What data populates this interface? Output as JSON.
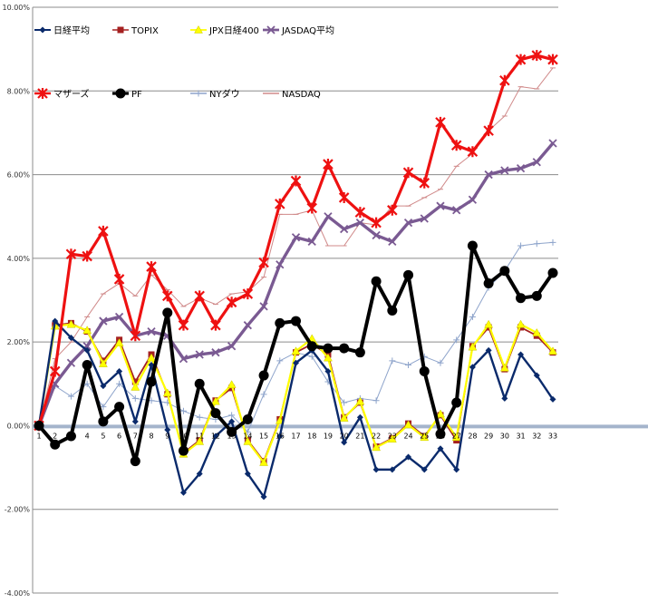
{
  "chart_data": {
    "type": "line",
    "title": "",
    "xlabel": "",
    "ylabel": "",
    "ylim": [
      -0.04,
      0.1
    ],
    "grid": true,
    "legend_placement": "top-left",
    "y_ticks": [
      "10.00%",
      "8.00%",
      "6.00%",
      "4.00%",
      "2.00%",
      "0.00%",
      "-2.00%",
      "-4.00%"
    ],
    "y_tick_values": [
      0.1,
      0.08,
      0.06,
      0.04,
      0.02,
      0.0,
      -0.02,
      -0.04
    ],
    "x": [
      "1",
      "2",
      "3",
      "4",
      "5",
      "6",
      "7",
      "8",
      "9",
      "10",
      "11",
      "12",
      "13",
      "14",
      "15",
      "16",
      "17",
      "18",
      "19",
      "20",
      "21",
      "22",
      "23",
      "24",
      "25",
      "26",
      "27",
      "28",
      "29",
      "30",
      "31",
      "32",
      "33"
    ],
    "series": [
      {
        "name": "日経平均",
        "color": "#0a2a6b",
        "marker": "diamond",
        "width": 2.4,
        "values": [
          0,
          0.025,
          0.021,
          0.018,
          0.0095,
          0.013,
          0.001,
          0.0145,
          -0.001,
          -0.016,
          -0.0115,
          -0.0025,
          0.001,
          -0.0115,
          -0.017,
          -0.0025,
          0.015,
          0.018,
          0.013,
          -0.004,
          0.002,
          -0.0105,
          -0.0105,
          -0.0075,
          -0.0105,
          -0.0055,
          -0.0105,
          0.014,
          0.018,
          0.0065,
          0.017,
          0.012,
          0.0063
        ]
      },
      {
        "name": "TOPIX",
        "color": "#a52020",
        "marker": "square",
        "width": 1.8,
        "values": [
          0,
          0.024,
          0.0245,
          0.0225,
          0.0155,
          0.0205,
          0.0105,
          0.017,
          0.0075,
          -0.0065,
          -0.0035,
          0.006,
          0.009,
          -0.0035,
          -0.0085,
          0.0015,
          0.0175,
          0.0195,
          0.017,
          0.002,
          0.0055,
          -0.005,
          -0.003,
          0.0005,
          -0.0025,
          0.0025,
          -0.0035,
          0.019,
          0.0235,
          0.0135,
          0.0235,
          0.0215,
          0.0175
        ]
      },
      {
        "name": "JPX日経400",
        "color": "#ffff00",
        "marker": "triangle",
        "width": 2.2,
        "values": [
          0,
          0.0238,
          0.0242,
          0.0228,
          0.0148,
          0.0198,
          0.0092,
          0.0162,
          0.0078,
          -0.0068,
          -0.0038,
          0.0058,
          0.0098,
          -0.0038,
          -0.0088,
          0.0012,
          0.0178,
          0.0208,
          0.0162,
          0.0018,
          0.0058,
          -0.0052,
          -0.0032,
          0.0002,
          -0.0028,
          0.0028,
          -0.0028,
          0.0188,
          0.0242,
          0.0138,
          0.0242,
          0.0222,
          0.0178
        ]
      },
      {
        "name": "JASDAQ平均",
        "color": "#7a5a92",
        "marker": "x",
        "width": 3.4,
        "values": [
          0,
          0.01,
          0.015,
          0.019,
          0.025,
          0.026,
          0.0215,
          0.0225,
          0.0215,
          0.016,
          0.017,
          0.0175,
          0.019,
          0.024,
          0.0285,
          0.0385,
          0.045,
          0.044,
          0.05,
          0.047,
          0.0485,
          0.0455,
          0.044,
          0.0485,
          0.0495,
          0.0525,
          0.0515,
          0.054,
          0.06,
          0.061,
          0.0615,
          0.063,
          0.0675
        ]
      },
      {
        "name": "マザーズ",
        "color": "#ee1111",
        "marker": "star",
        "width": 3.2,
        "values": [
          0,
          0.013,
          0.041,
          0.0405,
          0.0465,
          0.035,
          0.0215,
          0.038,
          0.031,
          0.024,
          0.031,
          0.024,
          0.0295,
          0.0315,
          0.039,
          0.053,
          0.0585,
          0.052,
          0.0625,
          0.0545,
          0.051,
          0.0485,
          0.0515,
          0.0605,
          0.058,
          0.0725,
          0.067,
          0.0655,
          0.0705,
          0.0825,
          0.0875,
          0.0885,
          0.0875
        ]
      },
      {
        "name": "PF",
        "color": "#000000",
        "marker": "circle",
        "width": 4,
        "values": [
          0,
          -0.0045,
          -0.0025,
          0.0145,
          0.001,
          0.0045,
          -0.0085,
          0.0105,
          0.027,
          -0.006,
          0.01,
          0.003,
          -0.0015,
          0.0015,
          0.012,
          0.0245,
          0.025,
          0.019,
          0.0185,
          0.0185,
          0.0175,
          0.0345,
          0.0275,
          0.036,
          0.013,
          -0.002,
          0.0055,
          0.043,
          0.034,
          0.037,
          0.0305,
          0.031,
          0.0365
        ]
      },
      {
        "name": "NYダウ",
        "color": "#8ea4cb",
        "marker": "plus",
        "width": 1,
        "values": [
          0,
          0.0095,
          0.007,
          0.01,
          0.0045,
          0.01,
          0.0065,
          0.006,
          0.0055,
          0.0035,
          0.002,
          0.0015,
          0.0025,
          -0.0015,
          0.0075,
          0.0155,
          0.0175,
          0.0165,
          0.0105,
          0.0055,
          0.0065,
          0.006,
          0.0155,
          0.0145,
          0.0165,
          0.015,
          0.0205,
          0.026,
          0.033,
          0.037,
          0.043,
          0.0435,
          0.0438
        ]
      },
      {
        "name": "NASDAQ",
        "color": "#d08a8a",
        "marker": "dash",
        "width": 1,
        "values": [
          0,
          0.016,
          0.02,
          0.026,
          0.0315,
          0.034,
          0.031,
          0.036,
          0.0325,
          0.0285,
          0.0305,
          0.029,
          0.0315,
          0.032,
          0.0355,
          0.0505,
          0.0505,
          0.0515,
          0.043,
          0.043,
          0.0485,
          0.048,
          0.0525,
          0.0525,
          0.0545,
          0.0565,
          0.062,
          0.065,
          0.0705,
          0.074,
          0.081,
          0.0805,
          0.0855
        ]
      }
    ]
  }
}
